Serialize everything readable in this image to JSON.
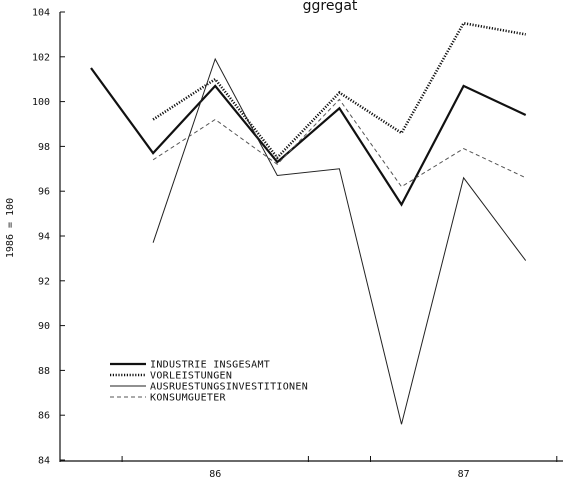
{
  "chart_data": {
    "type": "line",
    "title": "ggregat",
    "ylabel": "1986 = 100",
    "xlabel": "",
    "ylim": [
      84,
      104
    ],
    "yticks": [
      84,
      86,
      88,
      90,
      92,
      94,
      96,
      98,
      100,
      102,
      104
    ],
    "x_tick_labels": [
      {
        "x": 3,
        "label": "86"
      },
      {
        "x": 7,
        "label": "87"
      }
    ],
    "grid": false,
    "legend_placement": "lower-left",
    "series": [
      {
        "name": "INDUSTRIE INSGESAMT",
        "style": "solid-thick",
        "color": "#111111",
        "points": [
          [
            1,
            101.5
          ],
          [
            2,
            97.7
          ],
          [
            3,
            100.7
          ],
          [
            4,
            97.3
          ],
          [
            5,
            99.7
          ],
          [
            6,
            95.4
          ],
          [
            7,
            100.7
          ],
          [
            8,
            99.4
          ]
        ]
      },
      {
        "name": "VORLEISTUNGEN",
        "style": "dotted-thick",
        "color": "#111111",
        "points": [
          [
            2,
            99.2
          ],
          [
            3,
            101.0
          ],
          [
            4,
            97.5
          ],
          [
            5,
            100.4
          ],
          [
            6,
            98.6
          ],
          [
            7,
            103.5
          ],
          [
            8,
            103.0
          ]
        ]
      },
      {
        "name": "AUSRUESTUNGSINVESTITIONEN",
        "style": "solid-thin",
        "color": "#222222",
        "points": [
          [
            2,
            93.7
          ],
          [
            3,
            101.9
          ],
          [
            4,
            96.7
          ],
          [
            5,
            97.0
          ],
          [
            6,
            85.6
          ],
          [
            7,
            96.6
          ],
          [
            8,
            92.9
          ]
        ]
      },
      {
        "name": "KONSUMGUETER",
        "style": "dashed",
        "color": "#555555",
        "points": [
          [
            2,
            97.4
          ],
          [
            3,
            99.2
          ],
          [
            4,
            97.2
          ],
          [
            5,
            100.1
          ],
          [
            6,
            96.2
          ],
          [
            7,
            97.9
          ],
          [
            8,
            96.6
          ]
        ]
      }
    ]
  }
}
